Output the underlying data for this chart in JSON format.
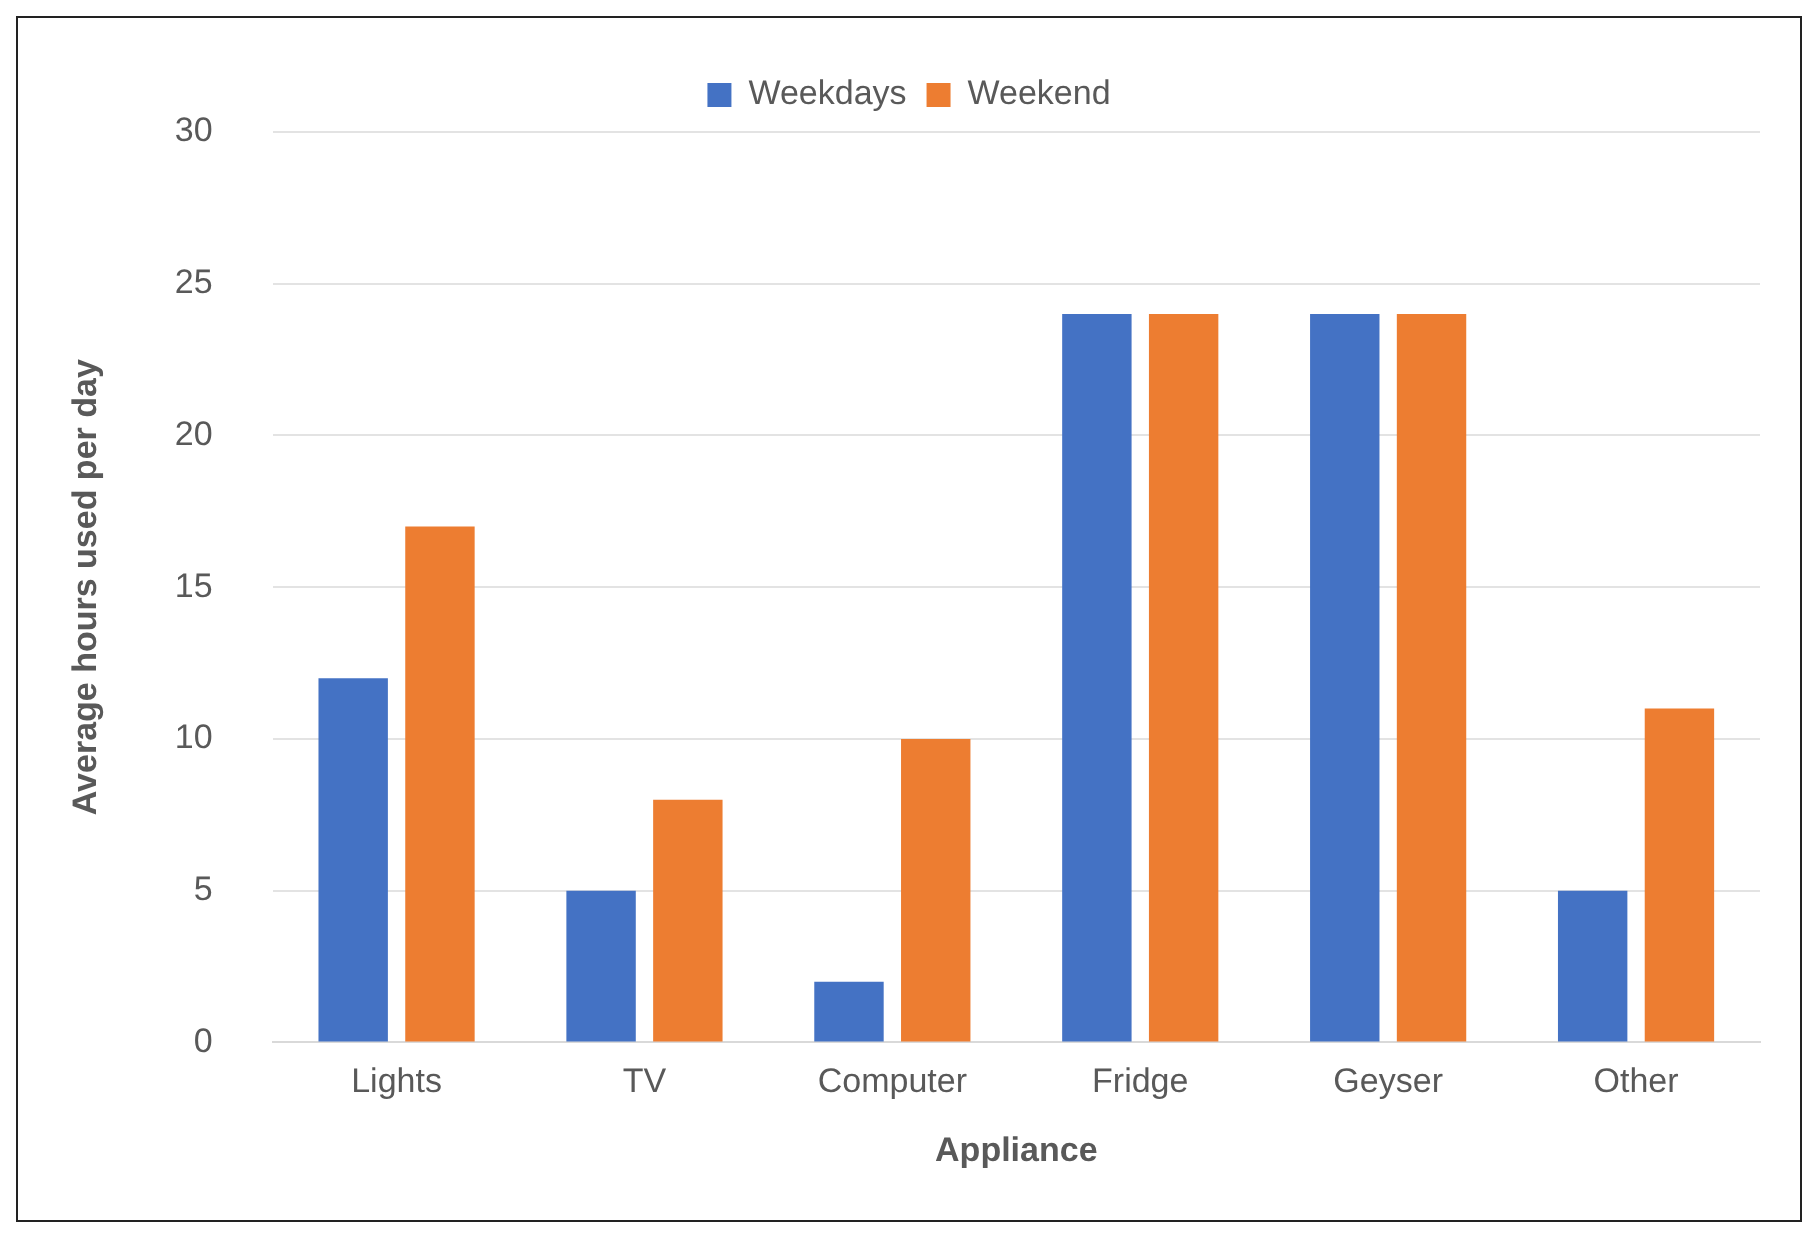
{
  "chart_data": {
    "type": "bar",
    "xlabel": "Appliance",
    "ylabel": "Average hours used per day",
    "categories": [
      "Lights",
      "TV",
      "Computer",
      "Fridge",
      "Geyser",
      "Other"
    ],
    "series": [
      {
        "name": "Weekdays",
        "color": "#4472c4",
        "values": [
          12,
          5,
          2,
          24,
          24,
          5
        ]
      },
      {
        "name": "Weekend",
        "color": "#ed7d31",
        "values": [
          17,
          8,
          10,
          24,
          24,
          11
        ]
      }
    ],
    "ylim": [
      0,
      30
    ],
    "yticks": [
      0,
      5,
      10,
      15,
      20,
      25,
      30
    ],
    "grid": "y",
    "legend": "top"
  }
}
